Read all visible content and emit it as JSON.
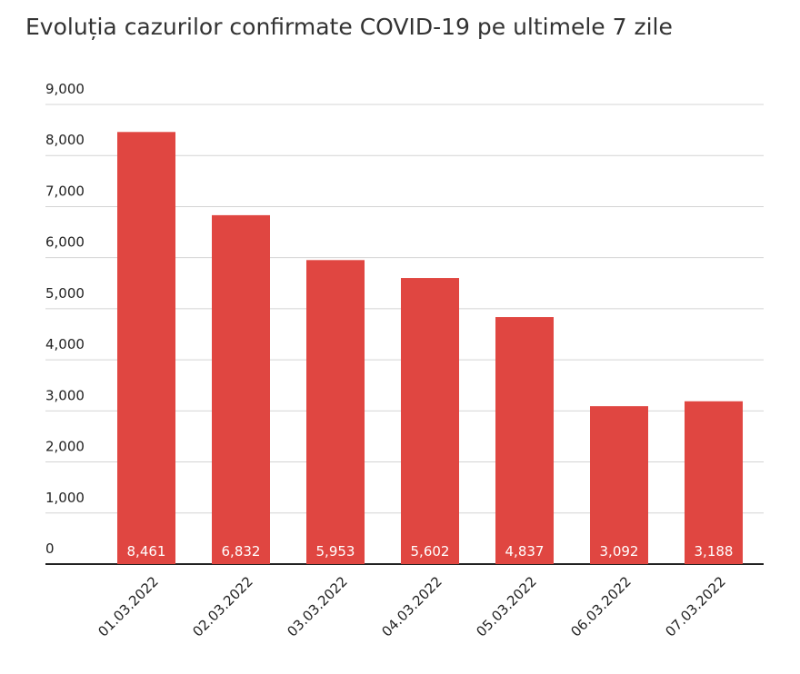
{
  "chart_data": {
    "type": "bar",
    "title": "Evoluția cazurilor confirmate COVID-19 pe ultimele 7 zile",
    "categories": [
      "01.03.2022",
      "02.03.2022",
      "03.03.2022",
      "04.03.2022",
      "05.03.2022",
      "06.03.2022",
      "07.03.2022"
    ],
    "values": [
      8461,
      6832,
      5953,
      5602,
      4837,
      3092,
      3188
    ],
    "value_labels": [
      "8,461",
      "6,832",
      "5,953",
      "5,602",
      "4,837",
      "3,092",
      "3,188"
    ],
    "color": "#e04641",
    "ylim": [
      0,
      9000
    ],
    "yticks": [
      0,
      {
        "value": 1000,
        "label": "1,000"
      },
      {
        "value": 2000,
        "label": "2,000"
      },
      {
        "value": 3000,
        "label": "3,000"
      },
      {
        "value": 4000,
        "label": "4,000"
      },
      {
        "value": 5000,
        "label": "5,000"
      },
      {
        "value": 6000,
        "label": "6,000"
      },
      {
        "value": 7000,
        "label": "7,000"
      },
      {
        "value": 8000,
        "label": "8,000"
      },
      {
        "value": 9000,
        "label": "9,000"
      }
    ],
    "grid": true
  }
}
